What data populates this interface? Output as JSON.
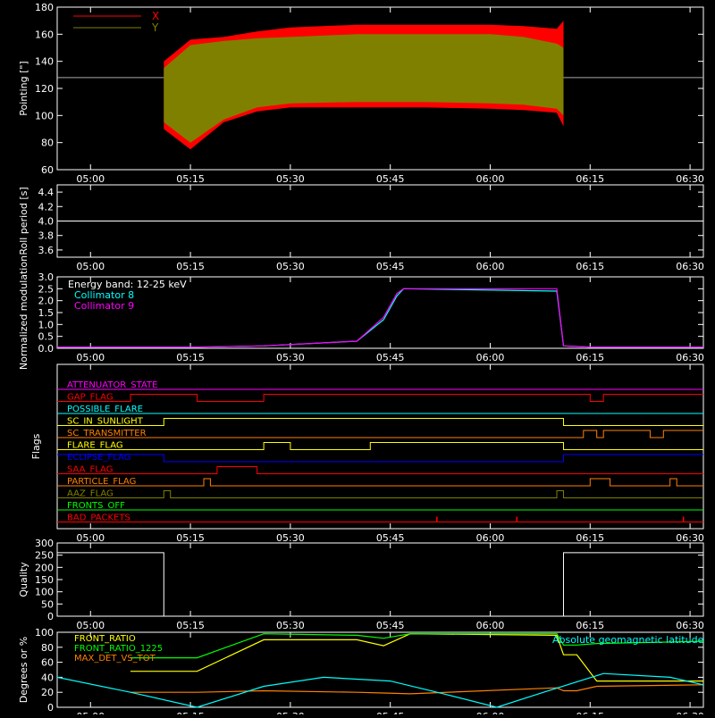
{
  "colors": {
    "background": "#000000",
    "axis": "#ffffff",
    "x_series": "#ff0000",
    "y_series": "#808000",
    "collimator8": "#00ffff",
    "collimator9": "#ff00ff"
  },
  "time_ticks": [
    "05:00",
    "05:15",
    "05:30",
    "05:45",
    "06:00",
    "06:15",
    "06:30"
  ],
  "chart_data": [
    {
      "type": "area",
      "ylabel": "Pointing [\"]",
      "ylim": [
        60,
        180
      ],
      "yticks": [
        60,
        80,
        100,
        120,
        140,
        160,
        180
      ],
      "legend": [
        {
          "name": "X",
          "color": "#ff0000"
        },
        {
          "name": "Y",
          "color": "#808000"
        }
      ],
      "reference_line": 128,
      "data_start": "05:11",
      "data_end": "06:11",
      "series": [
        {
          "name": "X",
          "x": [
            "05:11",
            "05:15",
            "05:20",
            "05:25",
            "05:30",
            "05:40",
            "05:50",
            "06:00",
            "06:05",
            "06:10",
            "06:11"
          ],
          "upper": [
            140,
            156,
            158,
            162,
            165,
            167,
            167,
            167,
            166,
            164,
            170
          ],
          "lower": [
            90,
            75,
            95,
            103,
            106,
            106,
            106,
            105,
            104,
            102,
            92
          ]
        },
        {
          "name": "Y",
          "x": [
            "05:11",
            "05:15",
            "05:20",
            "05:25",
            "05:30",
            "05:40",
            "05:50",
            "06:00",
            "06:05",
            "06:10",
            "06:11"
          ],
          "upper": [
            135,
            152,
            155,
            157,
            158,
            160,
            160,
            160,
            158,
            153,
            150
          ],
          "lower": [
            95,
            80,
            97,
            106,
            109,
            110,
            110,
            109,
            108,
            105,
            100
          ]
        }
      ]
    },
    {
      "type": "line",
      "ylabel": "Roll period [s]",
      "ylim": [
        3.5,
        4.5
      ],
      "yticks": [
        3.6,
        3.8,
        4.0,
        4.2,
        4.4
      ],
      "ytick_labels": [
        "3.6",
        "3.8",
        "4.0",
        "4.2",
        "4.4"
      ],
      "value": 4.0
    },
    {
      "type": "line",
      "ylabel": "Normalized modulation",
      "ylim": [
        0,
        3.0
      ],
      "yticks": [
        0.0,
        0.5,
        1.0,
        1.5,
        2.0,
        2.5,
        3.0
      ],
      "ytick_labels": [
        "0.0",
        "0.5",
        "1.0",
        "1.5",
        "2.0",
        "2.5",
        "3.0"
      ],
      "annotation": "Energy band: 12-25 keV",
      "series": [
        {
          "name": "Collimator 8",
          "x": [
            "04:55",
            "05:06",
            "05:16",
            "05:26",
            "05:40",
            "05:44",
            "05:46",
            "05:47",
            "06:10",
            "06:11",
            "06:15",
            "06:30",
            "06:32"
          ],
          "values": [
            0.05,
            0.05,
            0.05,
            0.1,
            0.3,
            1.2,
            2.2,
            2.5,
            2.4,
            0.1,
            0.05,
            0.05,
            0.05
          ]
        },
        {
          "name": "Collimator 9",
          "x": [
            "04:55",
            "05:06",
            "05:16",
            "05:26",
            "05:40",
            "05:44",
            "05:46",
            "05:47",
            "06:10",
            "06:11",
            "06:15",
            "06:30",
            "06:32"
          ],
          "values": [
            0.05,
            0.05,
            0.05,
            0.1,
            0.3,
            1.3,
            2.3,
            2.5,
            2.5,
            0.1,
            0.05,
            0.05,
            0.05
          ]
        }
      ]
    },
    {
      "type": "line",
      "ylabel": "Flags",
      "series": [
        {
          "name": "ATTENUATOR_STATE",
          "color": "#ff00ff",
          "x": [],
          "values": []
        },
        {
          "name": "GAP_FLAG",
          "color": "#ff0000",
          "x": [
            "04:55",
            "05:06",
            "05:06",
            "05:16",
            "05:16",
            "05:26",
            "05:26",
            "06:15",
            "06:15",
            "06:17",
            "06:17",
            "06:32"
          ],
          "values": [
            0,
            0,
            1,
            1,
            0,
            0,
            1,
            1,
            0,
            0,
            1,
            1
          ]
        },
        {
          "name": "POSSIBLE_FLARE",
          "color": "#00ffff",
          "x": [],
          "values": []
        },
        {
          "name": "SC_IN_SUNLIGHT",
          "color": "#ffff00",
          "x": [
            "04:55",
            "05:11",
            "05:11",
            "06:11",
            "06:11",
            "06:32"
          ],
          "values": [
            0,
            0,
            1,
            1,
            0,
            0
          ]
        },
        {
          "name": "SC_TRANSMITTER",
          "color": "#ff8000",
          "x": [
            "04:55",
            "06:14",
            "06:14",
            "06:16",
            "06:16",
            "06:17",
            "06:17",
            "06:24",
            "06:24",
            "06:26",
            "06:26",
            "06:32"
          ],
          "values": [
            0,
            0,
            1,
            1,
            0,
            0,
            1,
            1,
            0,
            0,
            1,
            1
          ]
        },
        {
          "name": "FLARE_FLAG",
          "color": "#ffff00",
          "x": [
            "04:55",
            "05:26",
            "05:26",
            "05:30",
            "05:30",
            "05:42",
            "05:42",
            "06:11",
            "06:11",
            "06:32"
          ],
          "values": [
            0,
            0,
            1,
            1,
            0,
            0,
            1,
            1,
            0,
            0
          ]
        },
        {
          "name": "ECLIPSE_FLAG",
          "color": "#0000ff",
          "x": [
            "04:55",
            "05:11",
            "05:11",
            "06:11",
            "06:11",
            "06:32"
          ],
          "values": [
            1,
            1,
            0,
            0,
            1,
            1
          ]
        },
        {
          "name": "SAA_FLAG",
          "color": "#ff0000",
          "x": [
            "04:55",
            "05:19",
            "05:19",
            "05:25",
            "05:25",
            "06:32"
          ],
          "values": [
            0,
            0,
            1,
            1,
            0,
            0
          ]
        },
        {
          "name": "PARTICLE_FLAG",
          "color": "#ff8000",
          "x": [
            "04:55",
            "05:17",
            "05:17",
            "05:18",
            "05:18",
            "06:15",
            "06:15",
            "06:18",
            "06:18",
            "06:27",
            "06:27",
            "06:28",
            "06:28",
            "06:32"
          ],
          "values": [
            0,
            0,
            1,
            1,
            0,
            0,
            1,
            1,
            0,
            0,
            1,
            1,
            0,
            0
          ]
        },
        {
          "name": "AAZ_FLAG",
          "color": "#808000",
          "x": [
            "04:55",
            "05:11",
            "05:11",
            "05:12",
            "05:12",
            "06:10",
            "06:10",
            "06:11",
            "06:11",
            "06:32"
          ],
          "values": [
            0,
            0,
            1,
            1,
            0,
            0,
            1,
            1,
            0,
            0
          ]
        },
        {
          "name": "FRONTS_OFF",
          "color": "#00ff00",
          "x": [],
          "values": []
        },
        {
          "name": "BAD_PACKETS",
          "color": "#ff0000",
          "spikes": [
            "05:52",
            "06:04",
            "06:29"
          ]
        }
      ]
    },
    {
      "type": "line",
      "ylabel": "Quality",
      "ylim": [
        0,
        300
      ],
      "yticks": [
        0,
        50,
        100,
        150,
        200,
        250,
        300
      ],
      "series": [
        {
          "name": "Quality",
          "x": [
            "04:55",
            "05:11",
            "05:11",
            "06:11",
            "06:11",
            "06:32"
          ],
          "values": [
            260,
            260,
            0,
            0,
            260,
            260
          ]
        }
      ]
    },
    {
      "type": "line",
      "ylabel": "Degrees or %",
      "ylim": [
        0,
        100
      ],
      "yticks": [
        0,
        20,
        40,
        60,
        80,
        100
      ],
      "annotation_right": "Absolute geomagnetic latitude",
      "series": [
        {
          "name": "FRONT_RATIO",
          "color": "#ffff00",
          "x": [
            "05:06",
            "05:16",
            "05:26",
            "05:40",
            "05:44",
            "05:48",
            "06:10",
            "06:11",
            "06:13",
            "06:16",
            "06:32"
          ],
          "values": [
            48,
            48,
            90,
            90,
            82,
            98,
            96,
            70,
            70,
            35,
            35
          ]
        },
        {
          "name": "FRONT_RATIO_1225",
          "color": "#00ff00",
          "x": [
            "05:06",
            "05:16",
            "05:26",
            "05:40",
            "05:44",
            "05:48",
            "06:10",
            "06:11",
            "06:13",
            "06:16",
            "06:32"
          ],
          "values": [
            66,
            66,
            98,
            96,
            92,
            98,
            98,
            83,
            83,
            85,
            88
          ]
        },
        {
          "name": "MAX_DET_VS_TOT",
          "color": "#ff8000",
          "x": [
            "05:06",
            "05:16",
            "05:26",
            "05:40",
            "05:44",
            "05:48",
            "06:10",
            "06:11",
            "06:13",
            "06:16",
            "06:32"
          ],
          "values": [
            20,
            20,
            22,
            20,
            19,
            18,
            26,
            22,
            22,
            28,
            30
          ]
        },
        {
          "name": "Absolute geomagnetic latitude",
          "color": "#00ffff",
          "x": [
            "04:55",
            "05:06",
            "05:16",
            "05:26",
            "05:35",
            "05:45",
            "05:53",
            "06:01",
            "06:08",
            "06:17",
            "06:27",
            "06:32"
          ],
          "values": [
            40,
            20,
            0,
            28,
            40,
            35,
            18,
            0,
            20,
            45,
            40,
            30
          ]
        }
      ]
    }
  ]
}
